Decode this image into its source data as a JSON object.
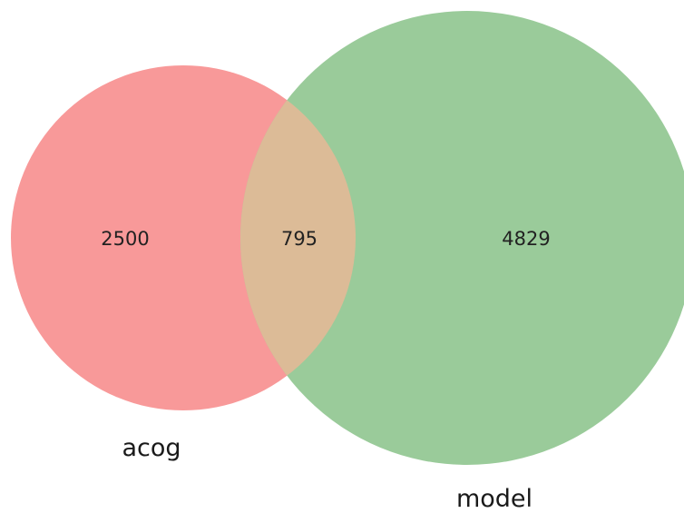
{
  "chart_data": {
    "type": "venn",
    "sets": [
      {
        "name": "acog",
        "only_count": "2500",
        "color": "#f89999"
      },
      {
        "name": "model",
        "only_count": "4829",
        "color": "#9acb9a"
      }
    ],
    "intersection": {
      "count": "795",
      "color": "#dcbb97"
    }
  }
}
